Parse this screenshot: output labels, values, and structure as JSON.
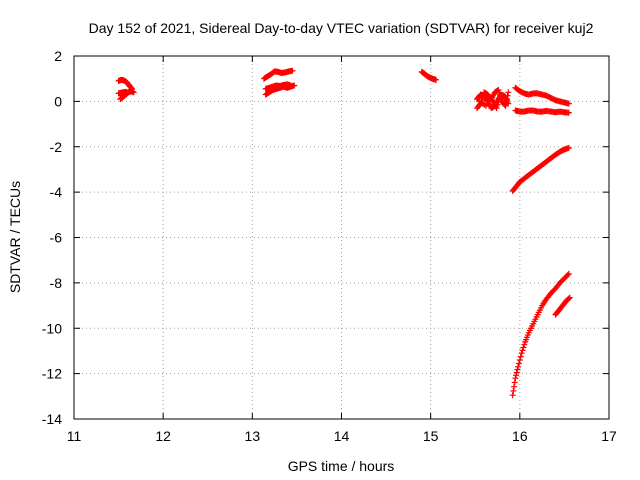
{
  "chart_data": {
    "type": "scatter",
    "title": "Day 152 of 2021, Sidereal Day-to-day VTEC variation (SDTVAR) for receiver kuj2",
    "xlabel": "GPS time / hours",
    "ylabel": "SDTVAR / TECUs",
    "xlim": [
      11,
      17
    ],
    "ylim": [
      -14,
      2
    ],
    "xticks": [
      "11",
      "12",
      "13",
      "14",
      "15",
      "16",
      "17"
    ],
    "yticks": [
      "-14",
      "-12",
      "-10",
      "-8",
      "-6",
      "-4",
      "-2",
      "0",
      "2"
    ],
    "grid": true,
    "marker": "+",
    "color": "#ff0000",
    "series": [
      {
        "values": [
          [
            11.5,
            0.9
          ],
          [
            11.53,
            0.95
          ],
          [
            11.56,
            0.92
          ],
          [
            11.59,
            0.85
          ],
          [
            11.62,
            0.7
          ],
          [
            11.65,
            0.55
          ]
        ]
      },
      {
        "values": [
          [
            11.52,
            0.1
          ],
          [
            11.55,
            0.2
          ],
          [
            11.58,
            0.3
          ],
          [
            11.61,
            0.4
          ],
          [
            11.64,
            0.45
          ],
          [
            11.67,
            0.4
          ]
        ]
      },
      {
        "values": [
          [
            11.5,
            0.35
          ],
          [
            11.53,
            0.38
          ],
          [
            11.56,
            0.4
          ],
          [
            11.59,
            0.42
          ]
        ]
      },
      {
        "values": [
          [
            13.13,
            1.0
          ],
          [
            13.17,
            1.1
          ],
          [
            13.21,
            1.2
          ],
          [
            13.25,
            1.32
          ],
          [
            13.29,
            1.3
          ],
          [
            13.33,
            1.25
          ],
          [
            13.37,
            1.28
          ],
          [
            13.41,
            1.32
          ],
          [
            13.45,
            1.35
          ]
        ]
      },
      {
        "values": [
          [
            13.15,
            0.3
          ],
          [
            13.19,
            0.4
          ],
          [
            13.23,
            0.5
          ],
          [
            13.27,
            0.55
          ],
          [
            13.31,
            0.6
          ],
          [
            13.35,
            0.65
          ],
          [
            13.39,
            0.6
          ],
          [
            13.43,
            0.65
          ],
          [
            13.47,
            0.7
          ]
        ]
      },
      {
        "values": [
          [
            13.15,
            0.55
          ],
          [
            13.19,
            0.6
          ],
          [
            13.23,
            0.65
          ],
          [
            13.27,
            0.7
          ],
          [
            13.31,
            0.68
          ],
          [
            13.35,
            0.72
          ],
          [
            13.39,
            0.75
          ],
          [
            13.43,
            0.7
          ]
        ]
      },
      {
        "values": [
          [
            14.9,
            1.3
          ],
          [
            14.93,
            1.22
          ],
          [
            14.96,
            1.12
          ],
          [
            14.99,
            1.05
          ],
          [
            15.02,
            1.0
          ],
          [
            15.06,
            0.95
          ]
        ]
      },
      {
        "values": [
          [
            15.52,
            0.1
          ],
          [
            15.56,
            0.3
          ],
          [
            15.6,
            0.2
          ],
          [
            15.64,
            0.0
          ],
          [
            15.68,
            -0.3
          ],
          [
            15.72,
            -0.2
          ],
          [
            15.76,
            0.1
          ],
          [
            15.8,
            0.3
          ],
          [
            15.84,
            0.2
          ],
          [
            15.87,
            -0.1
          ]
        ]
      },
      {
        "values": [
          [
            15.52,
            -0.3
          ],
          [
            15.56,
            -0.1
          ],
          [
            15.6,
            0.4
          ],
          [
            15.64,
            0.3
          ],
          [
            15.68,
            0.1
          ],
          [
            15.72,
            0.4
          ],
          [
            15.76,
            0.5
          ],
          [
            15.8,
            0.0
          ],
          [
            15.84,
            -0.2
          ],
          [
            15.87,
            0.4
          ]
        ]
      },
      {
        "values": [
          [
            15.55,
            0.0
          ],
          [
            15.62,
            -0.2
          ],
          [
            15.66,
            0.2
          ],
          [
            15.7,
            0.0
          ],
          [
            15.74,
            -0.3
          ],
          [
            15.78,
            0.3
          ],
          [
            15.82,
            -0.1
          ]
        ]
      },
      {
        "values": [
          [
            15.95,
            0.6
          ],
          [
            16.0,
            0.45
          ],
          [
            16.05,
            0.35
          ],
          [
            16.1,
            0.3
          ],
          [
            16.15,
            0.35
          ],
          [
            16.2,
            0.35
          ],
          [
            16.25,
            0.3
          ],
          [
            16.3,
            0.25
          ],
          [
            16.35,
            0.15
          ],
          [
            16.4,
            0.05
          ],
          [
            16.45,
            0.0
          ],
          [
            16.5,
            -0.05
          ],
          [
            16.55,
            -0.1
          ]
        ]
      },
      {
        "values": [
          [
            15.95,
            -0.4
          ],
          [
            16.0,
            -0.45
          ],
          [
            16.05,
            -0.45
          ],
          [
            16.1,
            -0.4
          ],
          [
            16.15,
            -0.4
          ],
          [
            16.2,
            -0.45
          ],
          [
            16.25,
            -0.45
          ],
          [
            16.3,
            -0.42
          ],
          [
            16.35,
            -0.45
          ],
          [
            16.4,
            -0.48
          ],
          [
            16.45,
            -0.45
          ],
          [
            16.5,
            -0.48
          ],
          [
            16.55,
            -0.5
          ]
        ]
      },
      {
        "values": [
          [
            15.92,
            -3.95
          ],
          [
            15.96,
            -3.75
          ],
          [
            16.0,
            -3.55
          ],
          [
            16.05,
            -3.4
          ],
          [
            16.1,
            -3.25
          ],
          [
            16.15,
            -3.1
          ],
          [
            16.2,
            -2.95
          ],
          [
            16.25,
            -2.8
          ],
          [
            16.3,
            -2.65
          ],
          [
            16.35,
            -2.5
          ],
          [
            16.4,
            -2.35
          ],
          [
            16.45,
            -2.22
          ],
          [
            16.5,
            -2.12
          ],
          [
            16.55,
            -2.05
          ]
        ]
      },
      {
        "values": [
          [
            15.92,
            -12.95
          ],
          [
            15.95,
            -12.2
          ],
          [
            15.98,
            -11.7
          ],
          [
            16.02,
            -11.1
          ],
          [
            16.06,
            -10.6
          ],
          [
            16.1,
            -10.2
          ],
          [
            16.15,
            -9.8
          ],
          [
            16.2,
            -9.4
          ],
          [
            16.25,
            -9.0
          ],
          [
            16.3,
            -8.7
          ],
          [
            16.35,
            -8.45
          ],
          [
            16.4,
            -8.25
          ],
          [
            16.45,
            -8.0
          ],
          [
            16.5,
            -7.8
          ],
          [
            16.55,
            -7.6
          ]
        ]
      },
      {
        "values": [
          [
            16.4,
            -9.4
          ],
          [
            16.44,
            -9.2
          ],
          [
            16.48,
            -9.0
          ],
          [
            16.52,
            -8.8
          ],
          [
            16.56,
            -8.65
          ]
        ]
      }
    ]
  }
}
